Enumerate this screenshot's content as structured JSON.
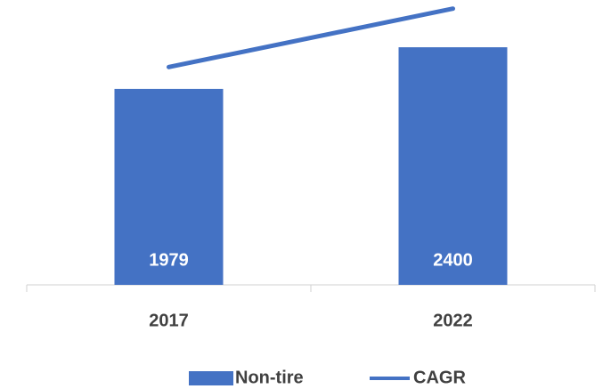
{
  "chart_data": {
    "type": "bar",
    "categories": [
      "2017",
      "2022"
    ],
    "series": [
      {
        "name": "Non-tire",
        "color": "#4472c4",
        "values": [
          1979,
          2400
        ]
      },
      {
        "name": "CAGR",
        "type": "line",
        "color": "#4472c4",
        "values": [
          2200,
          2790
        ]
      }
    ],
    "ylim": [
      0,
      2800
    ],
    "legend": "bottom"
  }
}
